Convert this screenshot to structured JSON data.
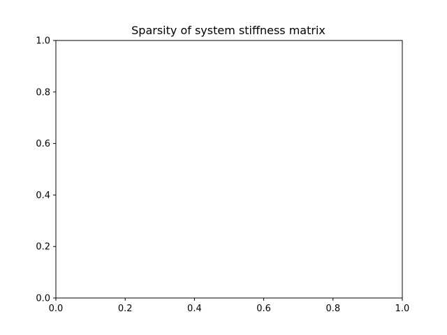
{
  "chart_data": {
    "type": "scatter",
    "title": "Sparsity of system stiffness matrix",
    "xlabel": "",
    "ylabel": "",
    "xlim": [
      0.0,
      1.0
    ],
    "ylim": [
      0.0,
      1.0
    ],
    "x_ticks": [
      0.0,
      0.2,
      0.4,
      0.6,
      0.8,
      1.0
    ],
    "y_ticks": [
      0.0,
      0.2,
      0.4,
      0.6,
      0.8,
      1.0
    ],
    "x_tick_labels": [
      "0.0",
      "0.2",
      "0.4",
      "0.6",
      "0.8",
      "1.0"
    ],
    "y_tick_labels": [
      "0.0",
      "0.2",
      "0.4",
      "0.6",
      "0.8",
      "1.0"
    ],
    "grid": false,
    "legend": "none",
    "points": [],
    "colors": {
      "axes": "#000000",
      "background": "#ffffff"
    }
  }
}
